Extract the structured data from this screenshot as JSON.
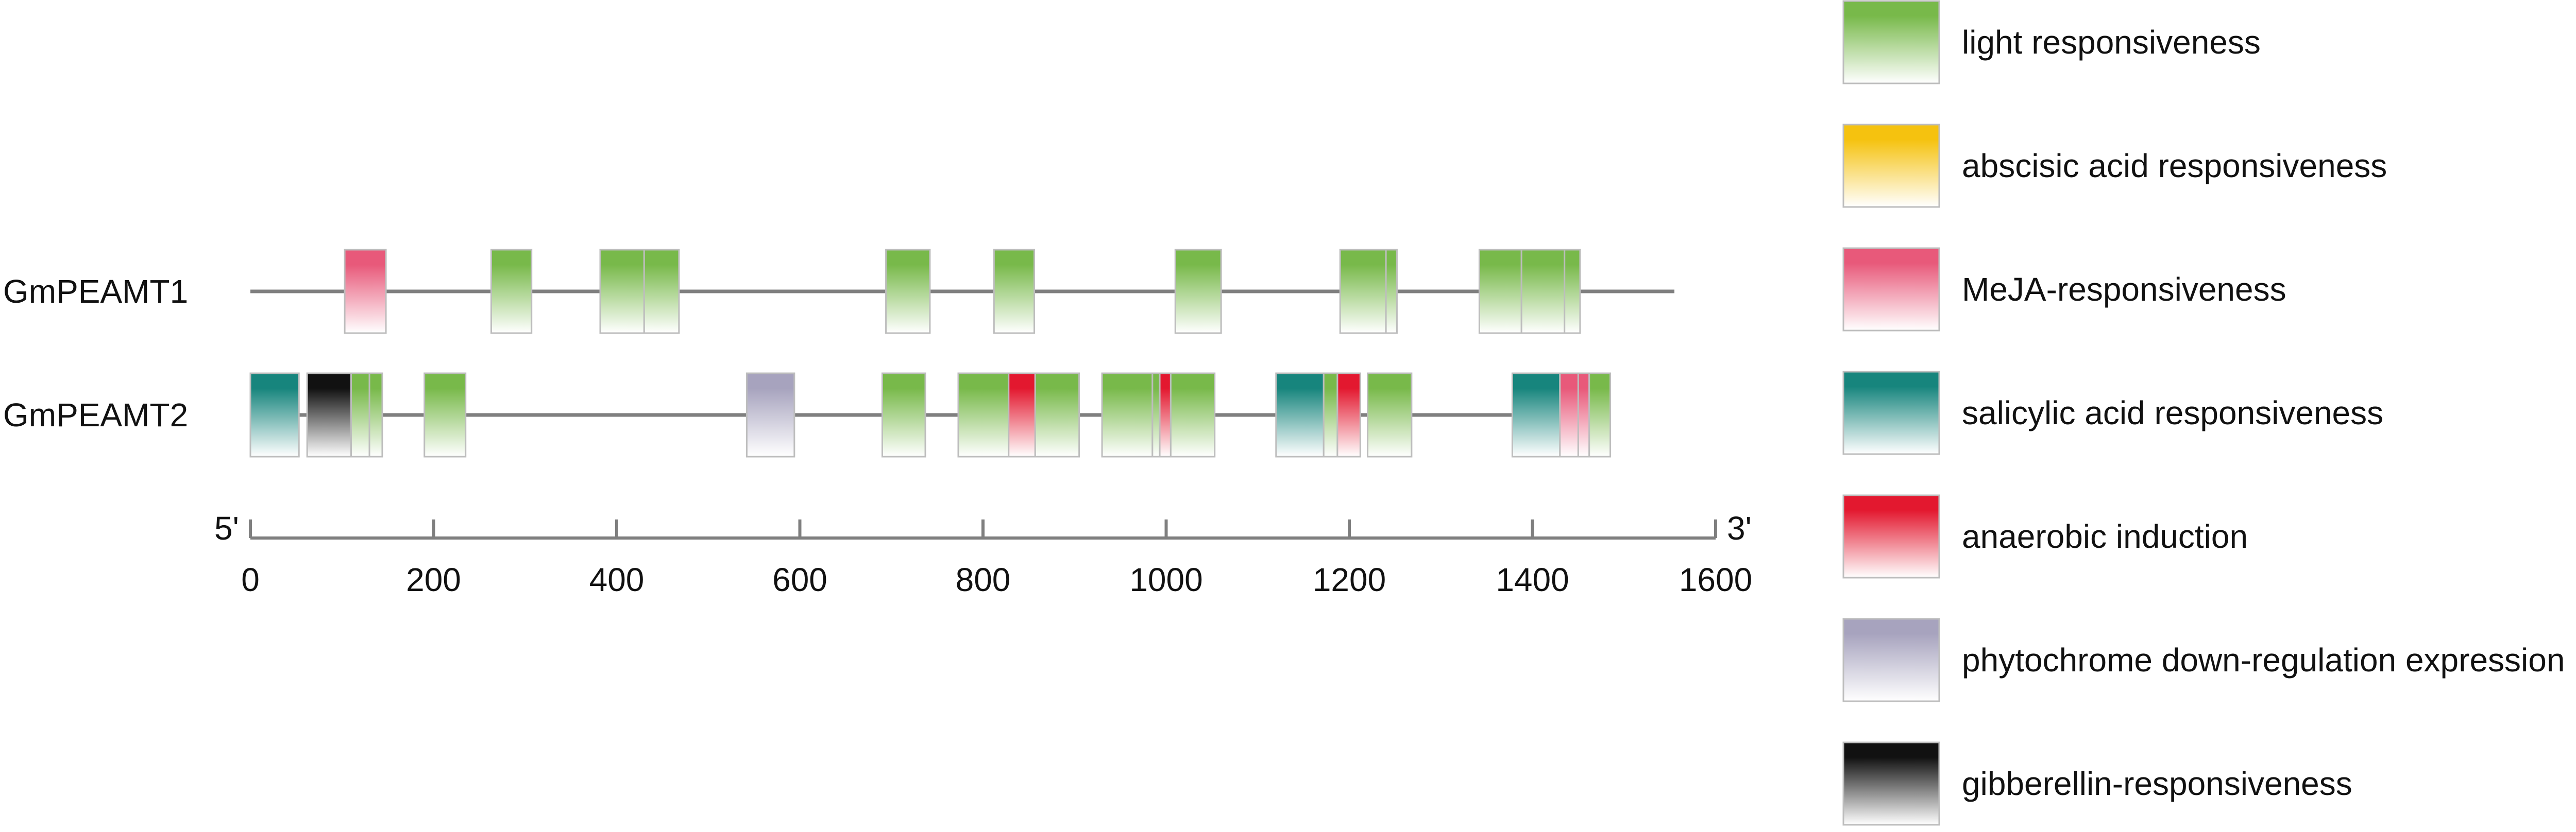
{
  "axis": {
    "min": 0,
    "max": 1600,
    "ticks": [
      0,
      200,
      400,
      600,
      800,
      1000,
      1200,
      1400,
      1600
    ],
    "start_label": "5'",
    "end_label": "3'"
  },
  "genes": [
    {
      "name": "GmPEAMT1",
      "length": 1555,
      "elements": [
        {
          "type": "meja",
          "start": 103,
          "end": 148
        },
        {
          "type": "light",
          "start": 263,
          "end": 307
        },
        {
          "type": "light",
          "start": 382,
          "end": 430
        },
        {
          "type": "light",
          "start": 430,
          "end": 468
        },
        {
          "type": "light",
          "start": 694,
          "end": 742
        },
        {
          "type": "light",
          "start": 812,
          "end": 856
        },
        {
          "type": "light",
          "start": 1010,
          "end": 1060
        },
        {
          "type": "light",
          "start": 1190,
          "end": 1240
        },
        {
          "type": "light",
          "start": 1240,
          "end": 1252
        },
        {
          "type": "light",
          "start": 1342,
          "end": 1388
        },
        {
          "type": "light",
          "start": 1388,
          "end": 1435
        },
        {
          "type": "light",
          "start": 1435,
          "end": 1452
        }
      ]
    },
    {
      "name": "GmPEAMT2",
      "length": 1485,
      "elements": [
        {
          "type": "salicylic",
          "start": 0,
          "end": 53
        },
        {
          "type": "gibberellin",
          "start": 62,
          "end": 110
        },
        {
          "type": "light",
          "start": 110,
          "end": 130
        },
        {
          "type": "light",
          "start": 130,
          "end": 144
        },
        {
          "type": "light",
          "start": 190,
          "end": 235
        },
        {
          "type": "phytochrome",
          "start": 542,
          "end": 594
        },
        {
          "type": "light",
          "start": 690,
          "end": 737
        },
        {
          "type": "light",
          "start": 773,
          "end": 828
        },
        {
          "type": "anaerobic",
          "start": 828,
          "end": 857
        },
        {
          "type": "light",
          "start": 857,
          "end": 905
        },
        {
          "type": "light",
          "start": 930,
          "end": 985
        },
        {
          "type": "light",
          "start": 985,
          "end": 993
        },
        {
          "type": "anaerobic",
          "start": 993,
          "end": 1005
        },
        {
          "type": "light",
          "start": 1005,
          "end": 1053
        },
        {
          "type": "salicylic",
          "start": 1120,
          "end": 1172
        },
        {
          "type": "light",
          "start": 1172,
          "end": 1187
        },
        {
          "type": "anaerobic",
          "start": 1187,
          "end": 1212
        },
        {
          "type": "light",
          "start": 1220,
          "end": 1268
        },
        {
          "type": "salicylic",
          "start": 1378,
          "end": 1430
        },
        {
          "type": "meja",
          "start": 1430,
          "end": 1450
        },
        {
          "type": "meja",
          "start": 1450,
          "end": 1462
        },
        {
          "type": "light",
          "start": 1462,
          "end": 1485
        }
      ]
    }
  ],
  "legend": [
    {
      "type": "light",
      "label": "light responsiveness",
      "color": "#78b94a"
    },
    {
      "type": "abscisic",
      "label": "abscisic acid responsiveness",
      "color": "#f5c20f"
    },
    {
      "type": "meja",
      "label": "MeJA-responsiveness",
      "color": "#e8597a"
    },
    {
      "type": "salicylic",
      "label": "salicylic acid responsiveness",
      "color": "#17857d"
    },
    {
      "type": "anaerobic",
      "label": "anaerobic induction",
      "color": "#e3182f"
    },
    {
      "type": "phytochrome",
      "label": "phytochrome down-regulation expression",
      "color": "#a7a3be"
    },
    {
      "type": "gibberellin",
      "label": "gibberellin-responsiveness",
      "color": "#111111"
    }
  ]
}
